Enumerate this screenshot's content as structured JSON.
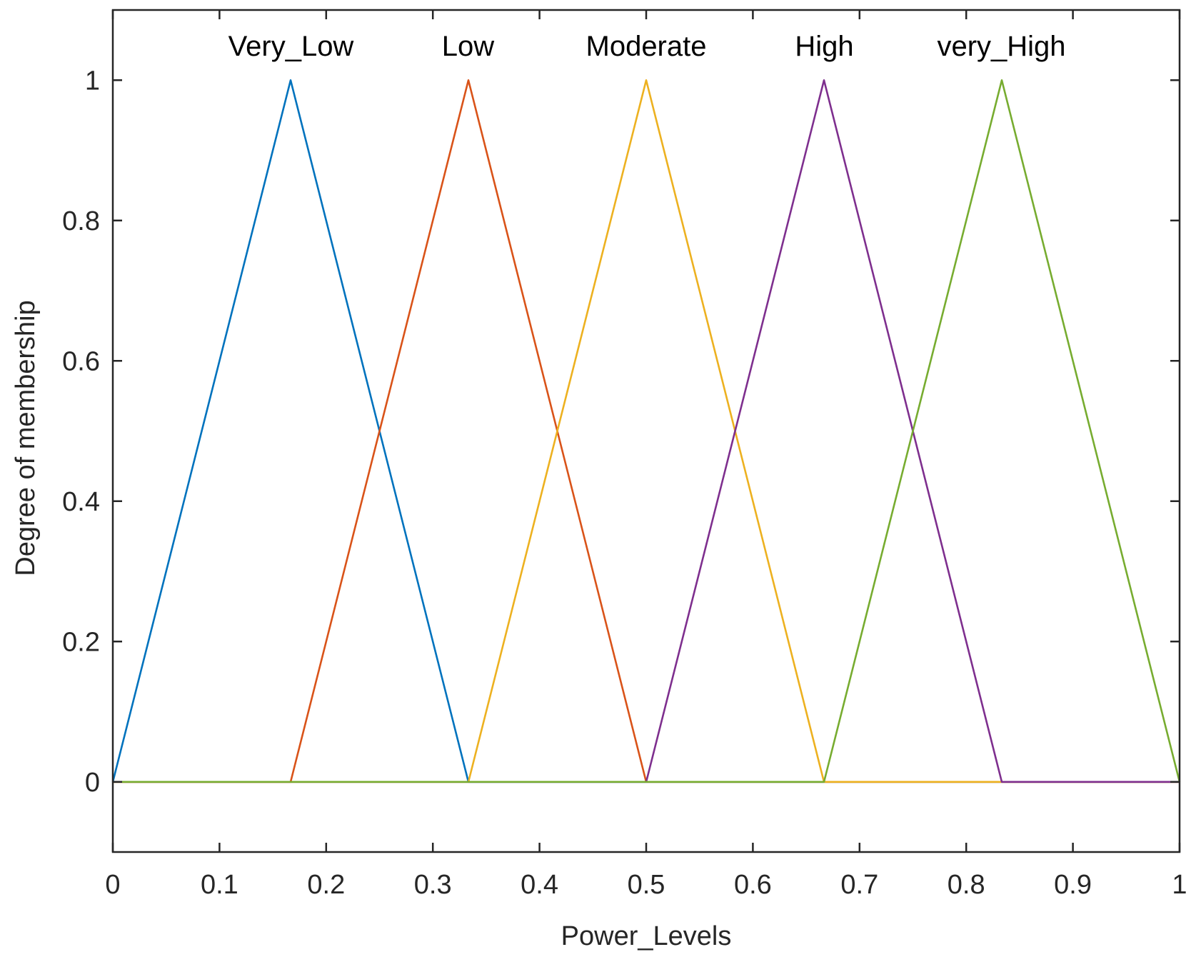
{
  "chart_data": {
    "type": "line",
    "title": "",
    "xlabel": "Power_Levels",
    "ylabel": "Degree of membership",
    "xlim": [
      0,
      1
    ],
    "ylim": [
      -0.1,
      1.1
    ],
    "xticks": [
      0,
      0.1,
      0.2,
      0.3,
      0.4,
      0.5,
      0.6,
      0.7,
      0.8,
      0.9,
      1
    ],
    "xtick_labels": [
      "0",
      "0.1",
      "0.2",
      "0.3",
      "0.4",
      "0.5",
      "0.6",
      "0.7",
      "0.8",
      "0.9",
      "1"
    ],
    "yticks": [
      0,
      0.2,
      0.4,
      0.6,
      0.8,
      1
    ],
    "ytick_labels": [
      "0",
      "0.2",
      "0.4",
      "0.6",
      "0.8",
      "1"
    ],
    "grid": false,
    "series": [
      {
        "name": "Very_Low",
        "label": "Very_Low",
        "color": "#0072BD",
        "label_x": 0.167,
        "points": [
          [
            0,
            0
          ],
          [
            0.1667,
            1
          ],
          [
            0.3333,
            0
          ],
          [
            1,
            0
          ]
        ]
      },
      {
        "name": "Low",
        "label": "Low",
        "color": "#D95319",
        "label_x": 0.333,
        "points": [
          [
            0,
            0
          ],
          [
            0.1667,
            0
          ],
          [
            0.3333,
            1
          ],
          [
            0.5,
            0
          ],
          [
            1,
            0
          ]
        ]
      },
      {
        "name": "Moderate",
        "label": "Moderate",
        "color": "#EDB120",
        "label_x": 0.5,
        "points": [
          [
            0,
            0
          ],
          [
            0.3333,
            0
          ],
          [
            0.5,
            1
          ],
          [
            0.6667,
            0
          ],
          [
            1,
            0
          ]
        ]
      },
      {
        "name": "High",
        "label": "High",
        "color": "#7E2F8E",
        "label_x": 0.667,
        "points": [
          [
            0,
            0
          ],
          [
            0.5,
            0
          ],
          [
            0.6667,
            1
          ],
          [
            0.8333,
            0
          ],
          [
            1,
            0
          ]
        ]
      },
      {
        "name": "very_High",
        "label": "very_High",
        "color": "#77AC30",
        "label_x": 0.833,
        "points": [
          [
            0,
            0
          ],
          [
            0.6667,
            0
          ],
          [
            0.8333,
            1
          ],
          [
            1,
            0
          ]
        ]
      }
    ]
  }
}
